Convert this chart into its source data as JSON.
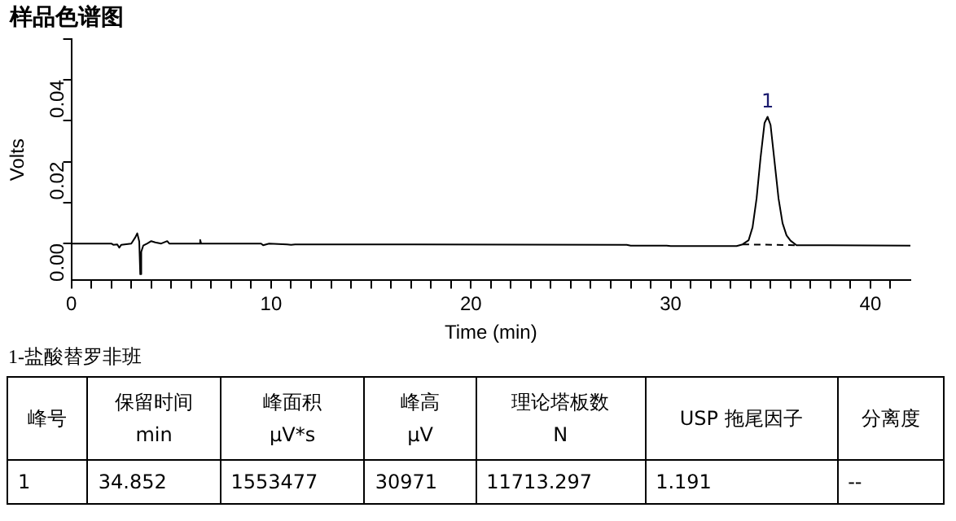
{
  "chart_data": {
    "type": "line",
    "title": "样品色谱图",
    "xlabel": "Time (min)",
    "ylabel": "Volts",
    "xlim": [
      0,
      42
    ],
    "ylim": [
      -0.009,
      0.05
    ],
    "xticks": [
      0,
      {
        "value": 1,
        "label": null
      },
      {
        "value": 2,
        "label": null
      },
      {
        "value": 3,
        "label": null
      },
      {
        "value": 4,
        "label": null
      },
      {
        "value": 5,
        "label": null
      },
      {
        "value": 6,
        "label": null
      },
      {
        "value": 7,
        "label": null
      },
      {
        "value": 8,
        "label": null
      },
      {
        "value": 9,
        "label": null
      },
      10,
      {
        "value": 11,
        "label": null
      },
      {
        "value": 12,
        "label": null
      },
      {
        "value": 13,
        "label": null
      },
      {
        "value": 14,
        "label": null
      },
      {
        "value": 15,
        "label": null
      },
      {
        "value": 16,
        "label": null
      },
      {
        "value": 17,
        "label": null
      },
      {
        "value": 18,
        "label": null
      },
      {
        "value": 19,
        "label": null
      },
      20,
      {
        "value": 21,
        "label": null
      },
      {
        "value": 22,
        "label": null
      },
      {
        "value": 23,
        "label": null
      },
      {
        "value": 24,
        "label": null
      },
      {
        "value": 25,
        "label": null
      },
      {
        "value": 26,
        "label": null
      },
      {
        "value": 27,
        "label": null
      },
      {
        "value": 28,
        "label": null
      },
      {
        "value": 29,
        "label": null
      },
      30,
      {
        "value": 31,
        "label": null
      },
      {
        "value": 32,
        "label": null
      },
      {
        "value": 33,
        "label": null
      },
      {
        "value": 34,
        "label": null
      },
      {
        "value": 35,
        "label": null
      },
      {
        "value": 36,
        "label": null
      },
      {
        "value": 37,
        "label": null
      },
      {
        "value": 38,
        "label": null
      },
      {
        "value": 39,
        "label": null
      },
      40,
      {
        "value": 41,
        "label": null
      }
    ],
    "yticks": [
      {
        "value": 0,
        "label": "0.00"
      },
      {
        "value": 0.01,
        "label": null
      },
      {
        "value": 0.02,
        "label": "0.02"
      },
      {
        "value": 0.03,
        "label": null
      },
      {
        "value": 0.04,
        "label": "0.04"
      },
      {
        "value": 0.05,
        "label": null
      }
    ],
    "grid": false,
    "legend": false,
    "marker": "none",
    "series": [
      {
        "color": "#000000",
        "line_style": "solid",
        "x": [
          0,
          2.0,
          2.1,
          2.3,
          2.4,
          2.5,
          3.0,
          3.2,
          3.3,
          3.4,
          3.45,
          3.5,
          3.6,
          3.8,
          4.0,
          4.2,
          4.5,
          4.8,
          4.9,
          6.4,
          6.45,
          6.5,
          9.5,
          9.6,
          9.9,
          10.8,
          11.0,
          11.2,
          27.8,
          28.0,
          29.8,
          30.0,
          33.3,
          33.6,
          33.9,
          34.1,
          34.3,
          34.5,
          34.7,
          34.85,
          35.0,
          35.2,
          35.4,
          35.6,
          35.8,
          36.0,
          36.3,
          42
        ],
        "values": [
          0,
          0,
          -0.0003,
          -0.0002,
          -0.001,
          -0.0003,
          0,
          0.0015,
          0.0025,
          0.0005,
          -0.0075,
          -0.002,
          -0.0005,
          0,
          0.0006,
          0.0003,
          0,
          0.0006,
          0,
          0,
          0.0009,
          0,
          0,
          -0.0004,
          0,
          -0.0002,
          -0.0003,
          -0.0002,
          -0.0003,
          -0.0005,
          -0.0005,
          -0.0006,
          -0.0006,
          -0.0002,
          0.0008,
          0.004,
          0.011,
          0.021,
          0.0295,
          0.031,
          0.029,
          0.02,
          0.011,
          0.005,
          0.002,
          0.0007,
          -0.0004,
          -0.0005
        ]
      },
      {
        "color": "#000000",
        "line_style": "dashed",
        "x": [
          33.6,
          36.3
        ],
        "values": [
          -0.0002,
          -0.0004
        ]
      }
    ],
    "annotations": [
      {
        "text": "1",
        "x": 34.85,
        "y": 0.031
      },
      "1-盐酸替罗非班",
      "峰号",
      "保留时间\nmin",
      "峰面积\nμV*s",
      "峰高\nμV",
      "理论塔板数\nN",
      "USP 拖尾因子",
      "分离度",
      "1",
      "34.852",
      "1553477",
      "30971",
      "11713.297",
      "1.191",
      "--"
    ]
  }
}
